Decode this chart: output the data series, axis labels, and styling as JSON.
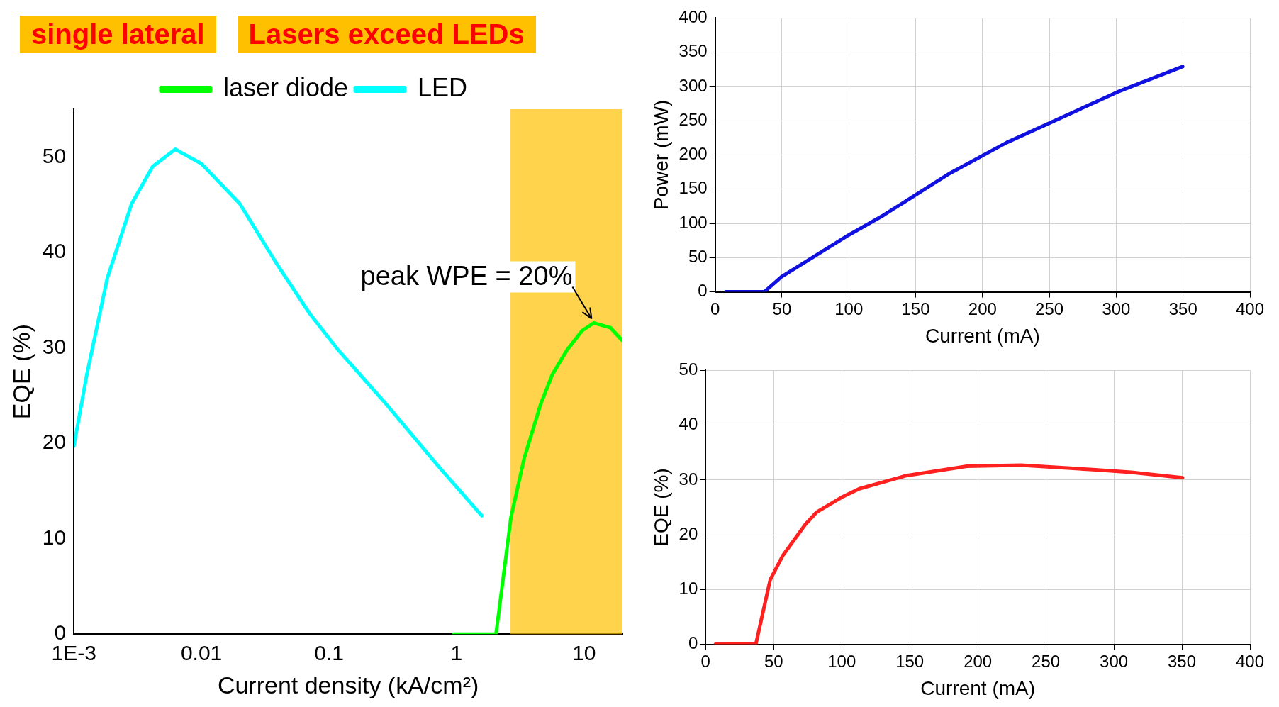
{
  "chart_data": [
    {
      "type": "line",
      "xlabel": "Current density (kA/cm²)",
      "ylabel": "EQE (%)",
      "log": "x",
      "xlim": [
        0.001,
        20
      ],
      "xticks": [
        {
          "value": 0.001,
          "label": "1E-3"
        },
        0.01,
        0.1,
        1,
        10
      ],
      "ylim": [
        0,
        55
      ],
      "yticks": [
        0,
        10,
        20,
        30,
        40,
        50
      ],
      "legend": "top",
      "grid": false,
      "annotations": [
        "single lateral",
        "Lasers exceed LEDs",
        {
          "text": "peak WPE = 20%",
          "x": 11.9,
          "y": 32.6
        }
      ],
      "bands": [
        {
          "axis": "x",
          "from": 2.65,
          "to": 20,
          "color": "#ffc000"
        }
      ],
      "series": [
        {
          "name": "laser diode",
          "color": "#00ff00",
          "x": [
            0.95,
            2.04,
            2.67,
            3.39,
            4.57,
            5.64,
            7.38,
            9.66,
            11.9,
            16.1,
            19.8
          ],
          "values": [
            0,
            0,
            12.2,
            18.4,
            24.1,
            27.2,
            29.8,
            31.8,
            32.6,
            32.1,
            30.8
          ]
        },
        {
          "name": "LED",
          "color": "#00ffff",
          "x": [
            0.001,
            0.00126,
            0.00183,
            0.00284,
            0.00415,
            0.00624,
            0.01,
            0.02,
            0.0398,
            0.0705,
            0.116,
            0.281,
            0.72,
            1.58
          ],
          "values": [
            19.7,
            27.1,
            37.3,
            45.1,
            49.0,
            50.8,
            49.3,
            45.1,
            38.6,
            33.6,
            29.9,
            24.1,
            17.6,
            12.4
          ]
        }
      ]
    },
    {
      "type": "line",
      "xlabel": "Current (mA)",
      "ylabel": "Power (mW)",
      "xlim": [
        0,
        400
      ],
      "xticks": [
        0,
        50,
        100,
        150,
        200,
        250,
        300,
        350,
        400
      ],
      "ylim": [
        0,
        400
      ],
      "yticks": [
        0,
        50,
        100,
        150,
        200,
        250,
        300,
        350,
        400
      ],
      "grid": true,
      "series": [
        {
          "color": "#1010e0",
          "x": [
            8,
            36.8,
            49.6,
            99.9,
            126,
            174.5,
            218,
            301,
            349.7
          ],
          "values": [
            0,
            0,
            22,
            83,
            112,
            172,
            218,
            292,
            329
          ]
        }
      ]
    },
    {
      "type": "line",
      "xlabel": "Current (mA)",
      "ylabel": "EQE (%)",
      "xlim": [
        0,
        400
      ],
      "xticks": [
        0,
        50,
        100,
        150,
        200,
        250,
        300,
        350,
        400
      ],
      "ylim": [
        0,
        50
      ],
      "yticks": [
        0,
        10,
        20,
        30,
        40,
        50
      ],
      "grid": true,
      "series": [
        {
          "color": "#ff2020",
          "x": [
            7.2,
            36.9,
            45.2,
            47.5,
            56.7,
            73.3,
            81.5,
            99.7,
            112.9,
            147.5,
            192,
            231.7,
            284.5,
            312.6,
            350.5
          ],
          "values": [
            0,
            0,
            9.3,
            11.8,
            16.2,
            21.9,
            24.1,
            26.8,
            28.4,
            30.8,
            32.5,
            32.7,
            31.9,
            31.4,
            30.4
          ]
        }
      ]
    }
  ]
}
